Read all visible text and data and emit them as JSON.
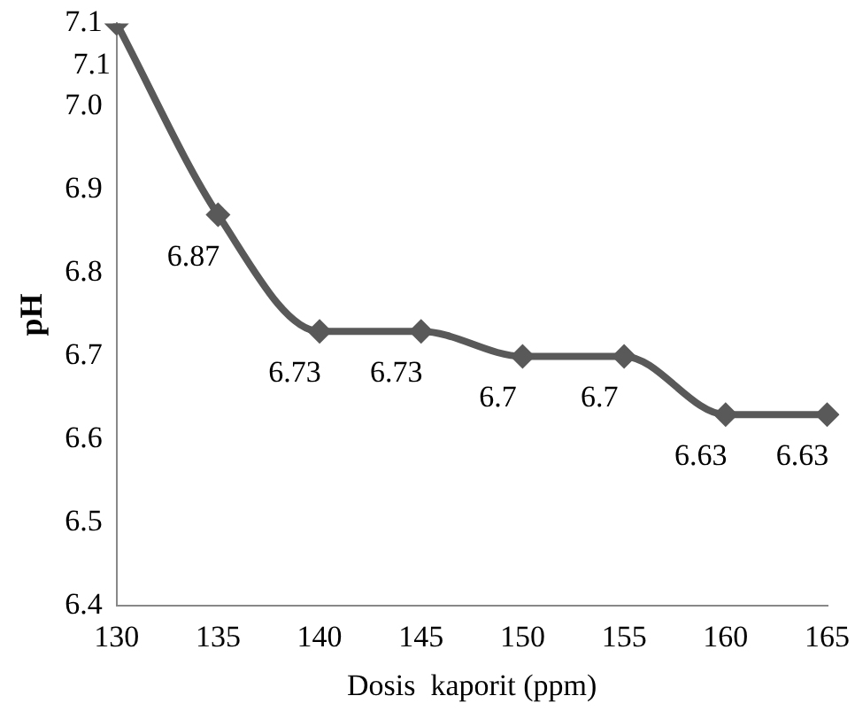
{
  "chart_data": {
    "type": "line",
    "xlabel": "Dosis  kaporit (ppm)",
    "ylabel": "pH",
    "categories": [
      "130",
      "135",
      "140",
      "145",
      "150",
      "155",
      "160",
      "165"
    ],
    "series": [
      {
        "color": "#595959",
        "values": [
          7.1,
          6.87,
          6.73,
          6.73,
          6.7,
          6.7,
          6.63,
          6.63
        ]
      }
    ],
    "ylim": [
      6.4,
      7.1
    ],
    "yticks": [
      6.4,
      6.5,
      6.6,
      6.7,
      6.8,
      6.9,
      {
        "value": 7.0,
        "label": "7.0"
      },
      7.1
    ],
    "grid": false,
    "legend": false,
    "marker": "diamond",
    "line_style": "solid",
    "data_labels": true
  }
}
